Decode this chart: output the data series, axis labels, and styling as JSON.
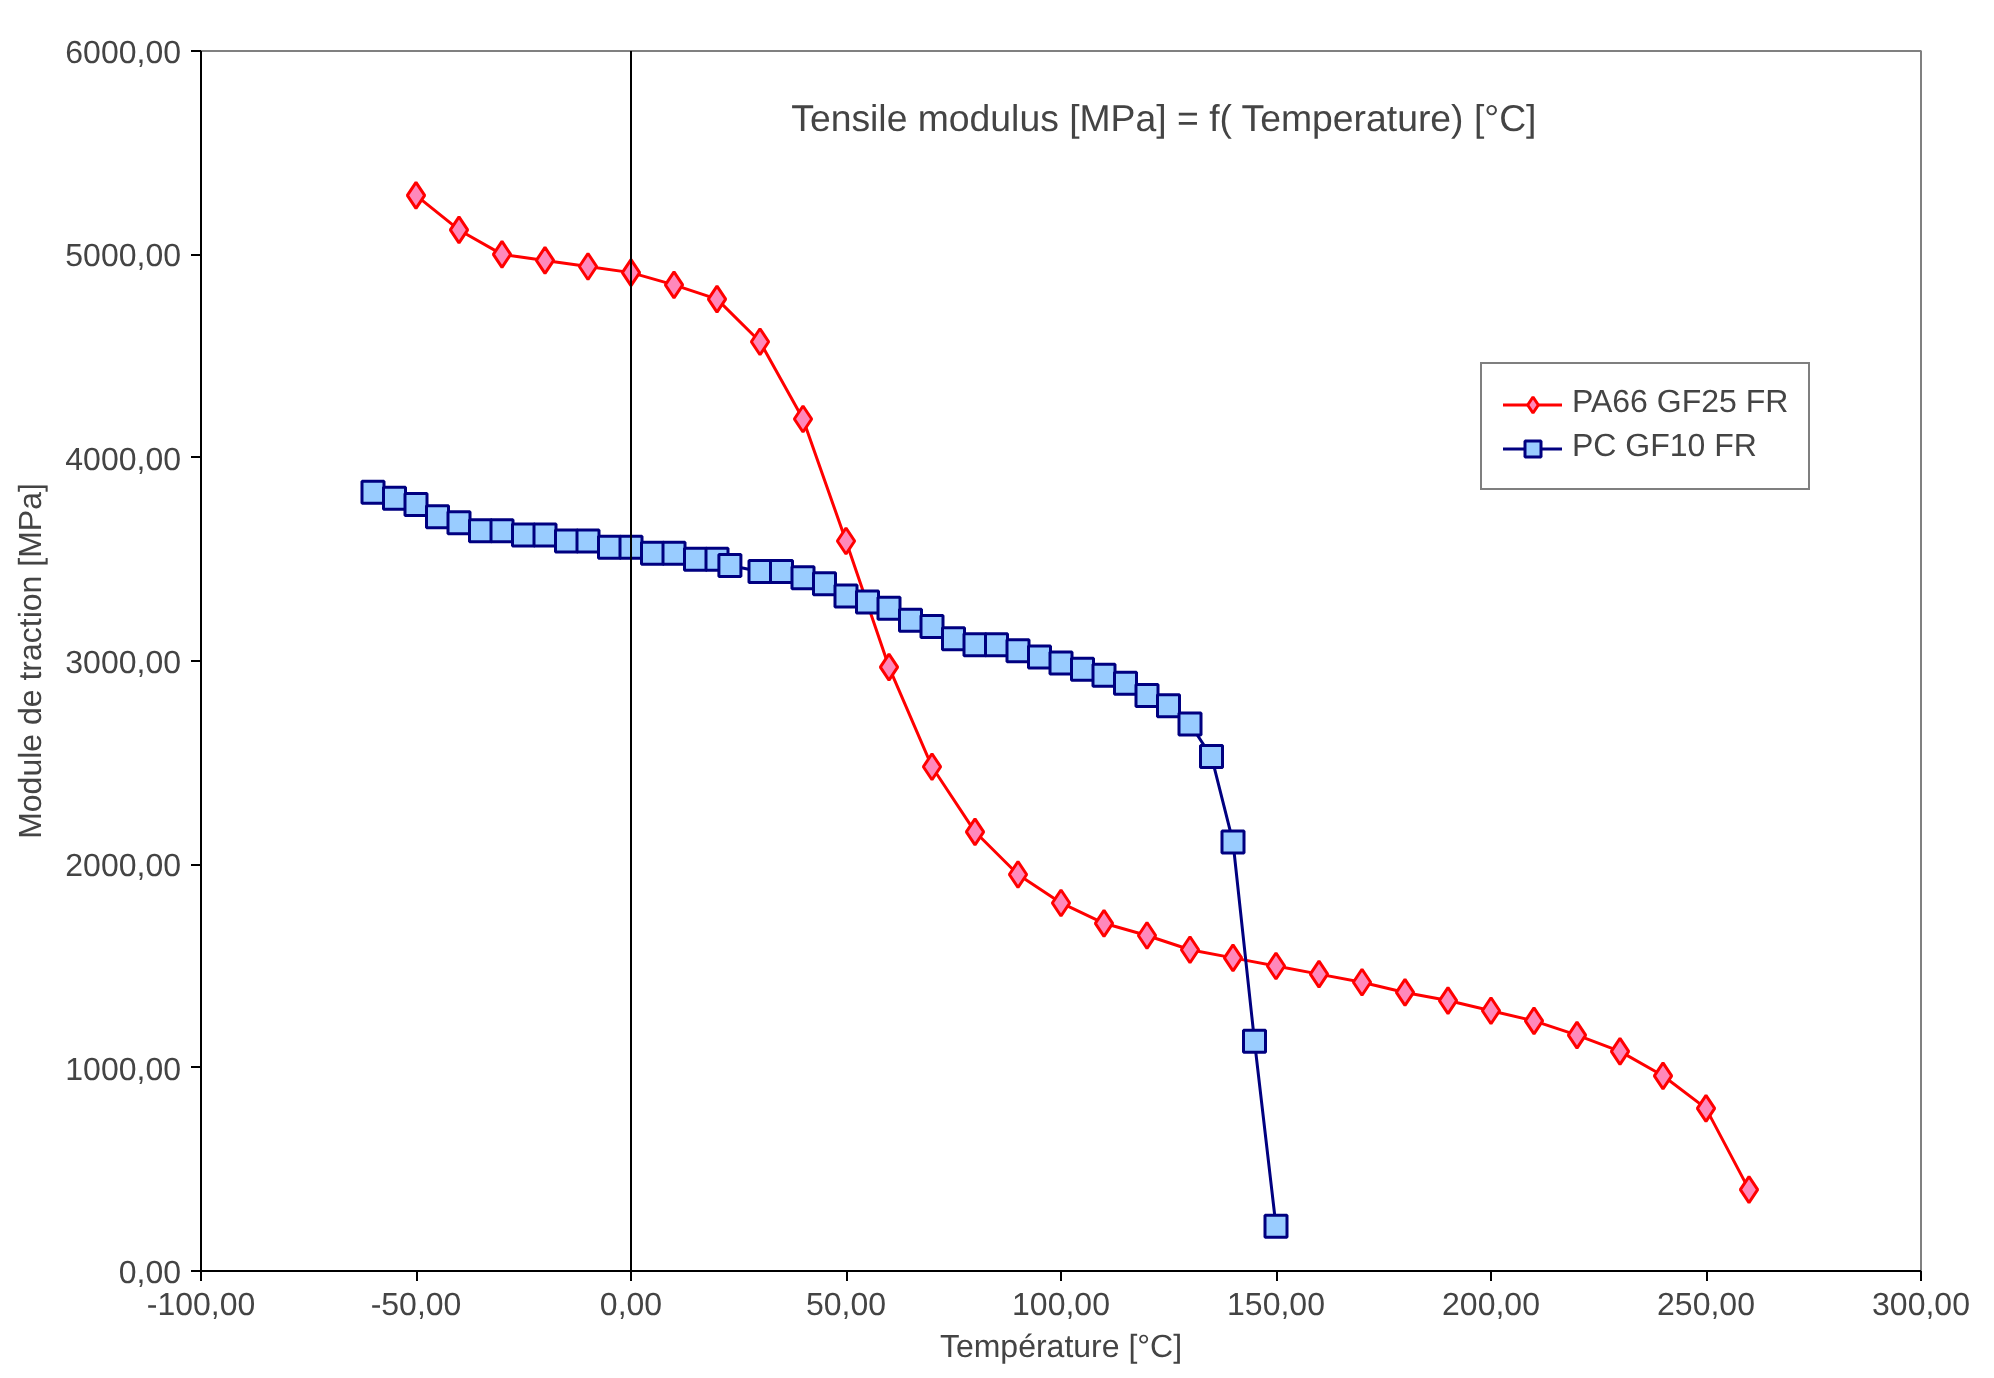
{
  "chart_data": {
    "type": "line",
    "title": "Tensile modulus [MPa] = f( Temperature) [°C]",
    "xlabel": "Température [°C]",
    "ylabel": "Module de traction [MPa]",
    "xlim": [
      -100,
      300
    ],
    "ylim": [
      0,
      6000
    ],
    "xticks": [
      {
        "value": -100,
        "label": "-100,00"
      },
      {
        "value": -50,
        "label": "-50,00"
      },
      {
        "value": 0,
        "label": "0,00"
      },
      {
        "value": 50,
        "label": "50,00"
      },
      {
        "value": 100,
        "label": "100,00"
      },
      {
        "value": 150,
        "label": "150,00"
      },
      {
        "value": 200,
        "label": "200,00"
      },
      {
        "value": 250,
        "label": "250,00"
      },
      {
        "value": 300,
        "label": "300,00"
      }
    ],
    "yticks": [
      {
        "value": 0,
        "label": "0,00"
      },
      {
        "value": 1000,
        "label": "1000,00"
      },
      {
        "value": 2000,
        "label": "2000,00"
      },
      {
        "value": 3000,
        "label": "3000,00"
      },
      {
        "value": 4000,
        "label": "4000,00"
      },
      {
        "value": 5000,
        "label": "5000,00"
      },
      {
        "value": 6000,
        "label": "6000,00"
      }
    ],
    "grid": false,
    "legend": "right",
    "ref_lines": [
      {
        "axis": "x",
        "value": 0,
        "color": "#000000"
      }
    ],
    "series": [
      {
        "name": "PA66 GF25 FR",
        "color": "#ff0000",
        "marker": "diamond",
        "x": [
          -50,
          -40,
          -30,
          -20,
          -10,
          0,
          10,
          20,
          30,
          40,
          50,
          60,
          70,
          80,
          90,
          100,
          110,
          120,
          130,
          140,
          150,
          160,
          170,
          180,
          190,
          200,
          210,
          220,
          230,
          240,
          250,
          260
        ],
        "values": [
          5290,
          5120,
          5000,
          4970,
          4940,
          4910,
          4850,
          4780,
          4570,
          4190,
          3590,
          2970,
          2480,
          2160,
          1950,
          1810,
          1710,
          1650,
          1580,
          1540,
          1500,
          1460,
          1420,
          1370,
          1330,
          1280,
          1230,
          1160,
          1080,
          960,
          800,
          400
        ]
      },
      {
        "name": "PC GF10 FR",
        "color": "#000080",
        "marker": "square",
        "x": [
          -60,
          -55,
          -50,
          -45,
          -40,
          -35,
          -30,
          -25,
          -20,
          -15,
          -10,
          -5,
          0,
          5,
          10,
          15,
          20,
          23,
          30,
          35,
          40,
          45,
          50,
          55,
          60,
          65,
          70,
          75,
          80,
          85,
          90,
          95,
          100,
          105,
          110,
          115,
          120,
          125,
          130,
          135,
          140,
          145,
          150
        ],
        "values": [
          3830,
          3800,
          3770,
          3710,
          3680,
          3640,
          3640,
          3620,
          3620,
          3590,
          3590,
          3560,
          3560,
          3530,
          3530,
          3500,
          3500,
          3470,
          3440,
          3440,
          3410,
          3380,
          3320,
          3290,
          3260,
          3200,
          3170,
          3110,
          3080,
          3080,
          3050,
          3020,
          2990,
          2960,
          2930,
          2890,
          2830,
          2780,
          2690,
          2530,
          2110,
          1130,
          220
        ]
      }
    ]
  }
}
